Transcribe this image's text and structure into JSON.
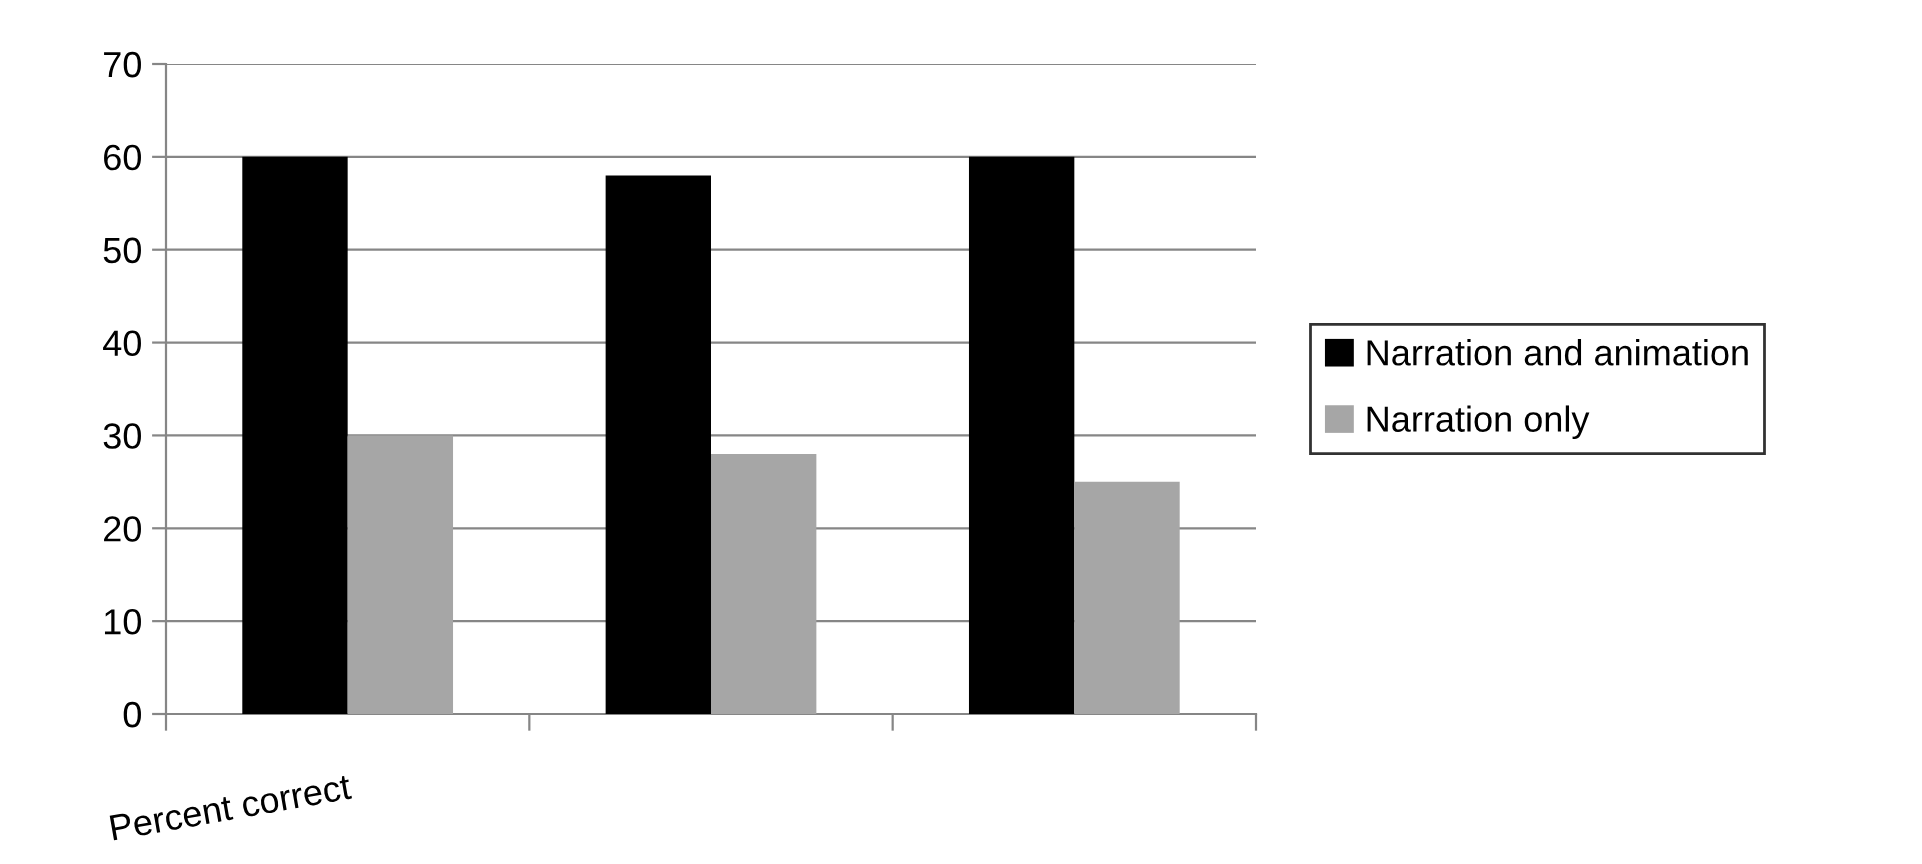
{
  "chart_data": {
    "type": "bar",
    "categories": [
      "Percent correct",
      null,
      null
    ],
    "series": [
      {
        "name": "Narration and animation",
        "color": "#000000",
        "values": [
          60,
          58,
          60
        ]
      },
      {
        "name": "Narration only",
        "color": "#a6a6a6",
        "values": [
          30,
          28,
          25
        ]
      }
    ],
    "ylim": [
      0,
      70
    ],
    "yticks": [
      0,
      10,
      20,
      30,
      40,
      50,
      60,
      70
    ],
    "grid": "y",
    "legend": "right"
  }
}
